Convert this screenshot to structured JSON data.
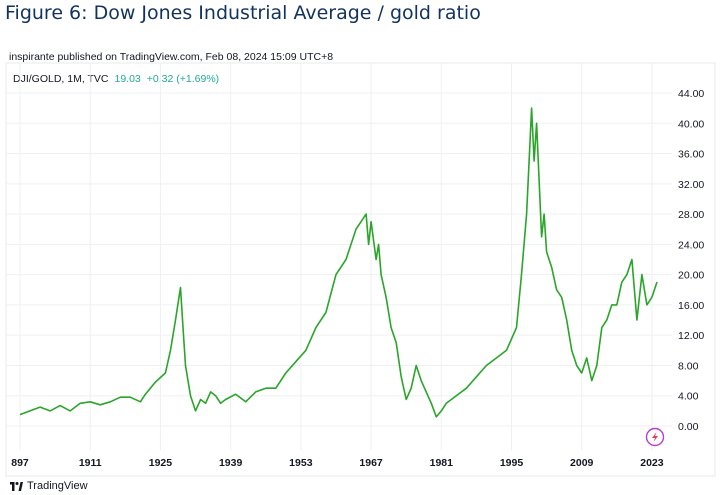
{
  "figure_title": "Figure 6: Dow Jones Industrial Average / gold ratio",
  "published_line": "inspirante published on TradingView.com, Feb 08, 2024 15:09 UTC+8",
  "legend": {
    "symbol": "DJI/GOLD, 1M, TVC",
    "value": "19.03",
    "change": "+0.32 (+1.69%)"
  },
  "brand": "TradingView",
  "colors": {
    "line": "#2aa52a",
    "accent": "#22ab94",
    "grid": "#eef0f3",
    "title": "#12335e"
  },
  "chart_data": {
    "type": "line",
    "title": "",
    "xlabel": "",
    "ylabel": "",
    "x_ticks": [
      "897",
      "1911",
      "1925",
      "1939",
      "1953",
      "1967",
      "1981",
      "1995",
      "2009",
      "2023"
    ],
    "y_ticks": [
      "0.00",
      "4.00",
      "8.00",
      "12.00",
      "16.00",
      "20.00",
      "24.00",
      "28.00",
      "32.00",
      "36.00",
      "40.00",
      "44.00"
    ],
    "xlim": [
      1897,
      2027
    ],
    "ylim": [
      0,
      44
    ],
    "grid": true,
    "series": [
      {
        "x": [
          1897,
          1899,
          1901,
          1903,
          1905,
          1907,
          1909,
          1911,
          1913,
          1915,
          1917,
          1919,
          1921,
          1922,
          1924,
          1926,
          1927,
          1928,
          1929,
          1929.5,
          1930,
          1931,
          1932,
          1933,
          1934,
          1935,
          1936,
          1937,
          1938,
          1940,
          1942,
          1944,
          1946,
          1948,
          1950,
          1952,
          1954,
          1956,
          1958,
          1960,
          1962,
          1964,
          1966,
          1966.5,
          1967,
          1968,
          1968.5,
          1969,
          1970,
          1971,
          1972,
          1973,
          1974,
          1975,
          1976,
          1977,
          1978,
          1979,
          1980,
          1981,
          1982,
          1984,
          1986,
          1988,
          1990,
          1992,
          1994,
          1996,
          1997,
          1998,
          1999,
          1999.5,
          2000,
          2001,
          2001.5,
          2002,
          2003,
          2004,
          2005,
          2006,
          2007,
          2008,
          2009,
          2010,
          2011,
          2012,
          2013,
          2014,
          2015,
          2016,
          2017,
          2018,
          2019,
          2020,
          2021,
          2022,
          2023,
          2024
        ],
        "y": [
          1.5,
          2.0,
          2.5,
          2.0,
          2.7,
          2.0,
          3.0,
          3.2,
          2.8,
          3.2,
          3.8,
          3.8,
          3.2,
          4.2,
          5.8,
          7.0,
          10.0,
          14.0,
          18.3,
          13.0,
          8.0,
          4.0,
          2.0,
          3.5,
          3.0,
          4.5,
          4.0,
          3.0,
          3.5,
          4.2,
          3.2,
          4.5,
          5.0,
          5.0,
          7.0,
          8.5,
          10.0,
          13.0,
          15.0,
          20.0,
          22.0,
          26.0,
          28.0,
          24.0,
          27.0,
          22.0,
          24.0,
          20.0,
          17.0,
          13.0,
          11.0,
          6.5,
          3.5,
          5.0,
          8.0,
          6.0,
          4.5,
          3.0,
          1.2,
          2.0,
          3.0,
          4.0,
          5.0,
          6.5,
          8.0,
          9.0,
          10.0,
          13.0,
          20.0,
          28.0,
          42.0,
          35.0,
          40.0,
          25.0,
          28.0,
          23.0,
          21.0,
          18.0,
          17.0,
          14.0,
          10.0,
          8.0,
          7.0,
          9.0,
          6.0,
          8.0,
          13.0,
          14.0,
          16.0,
          16.0,
          19.0,
          20.0,
          22.0,
          14.0,
          20.0,
          16.0,
          17.0,
          19.03
        ]
      }
    ]
  }
}
